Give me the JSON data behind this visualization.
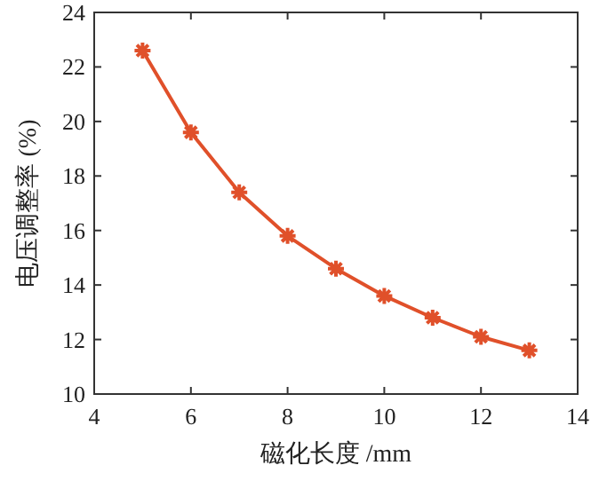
{
  "chart_data": {
    "type": "line",
    "xlabel": "磁化长度 /mm",
    "ylabel": "电压调整率 (%)",
    "x": [
      5,
      6,
      7,
      8,
      9,
      10,
      11,
      12,
      13
    ],
    "series": [
      {
        "color": "#e0502a",
        "values": [
          22.6,
          19.6,
          17.4,
          15.8,
          14.6,
          13.6,
          12.8,
          12.1,
          11.6
        ]
      }
    ],
    "xlim": [
      4,
      14
    ],
    "xticks": [
      4,
      6,
      8,
      10,
      12,
      14
    ],
    "ylim": [
      10,
      24
    ],
    "yticks": [
      10,
      12,
      14,
      16,
      18,
      20,
      22,
      24
    ],
    "marker": "cross",
    "line_style": "solid",
    "grid": false
  }
}
